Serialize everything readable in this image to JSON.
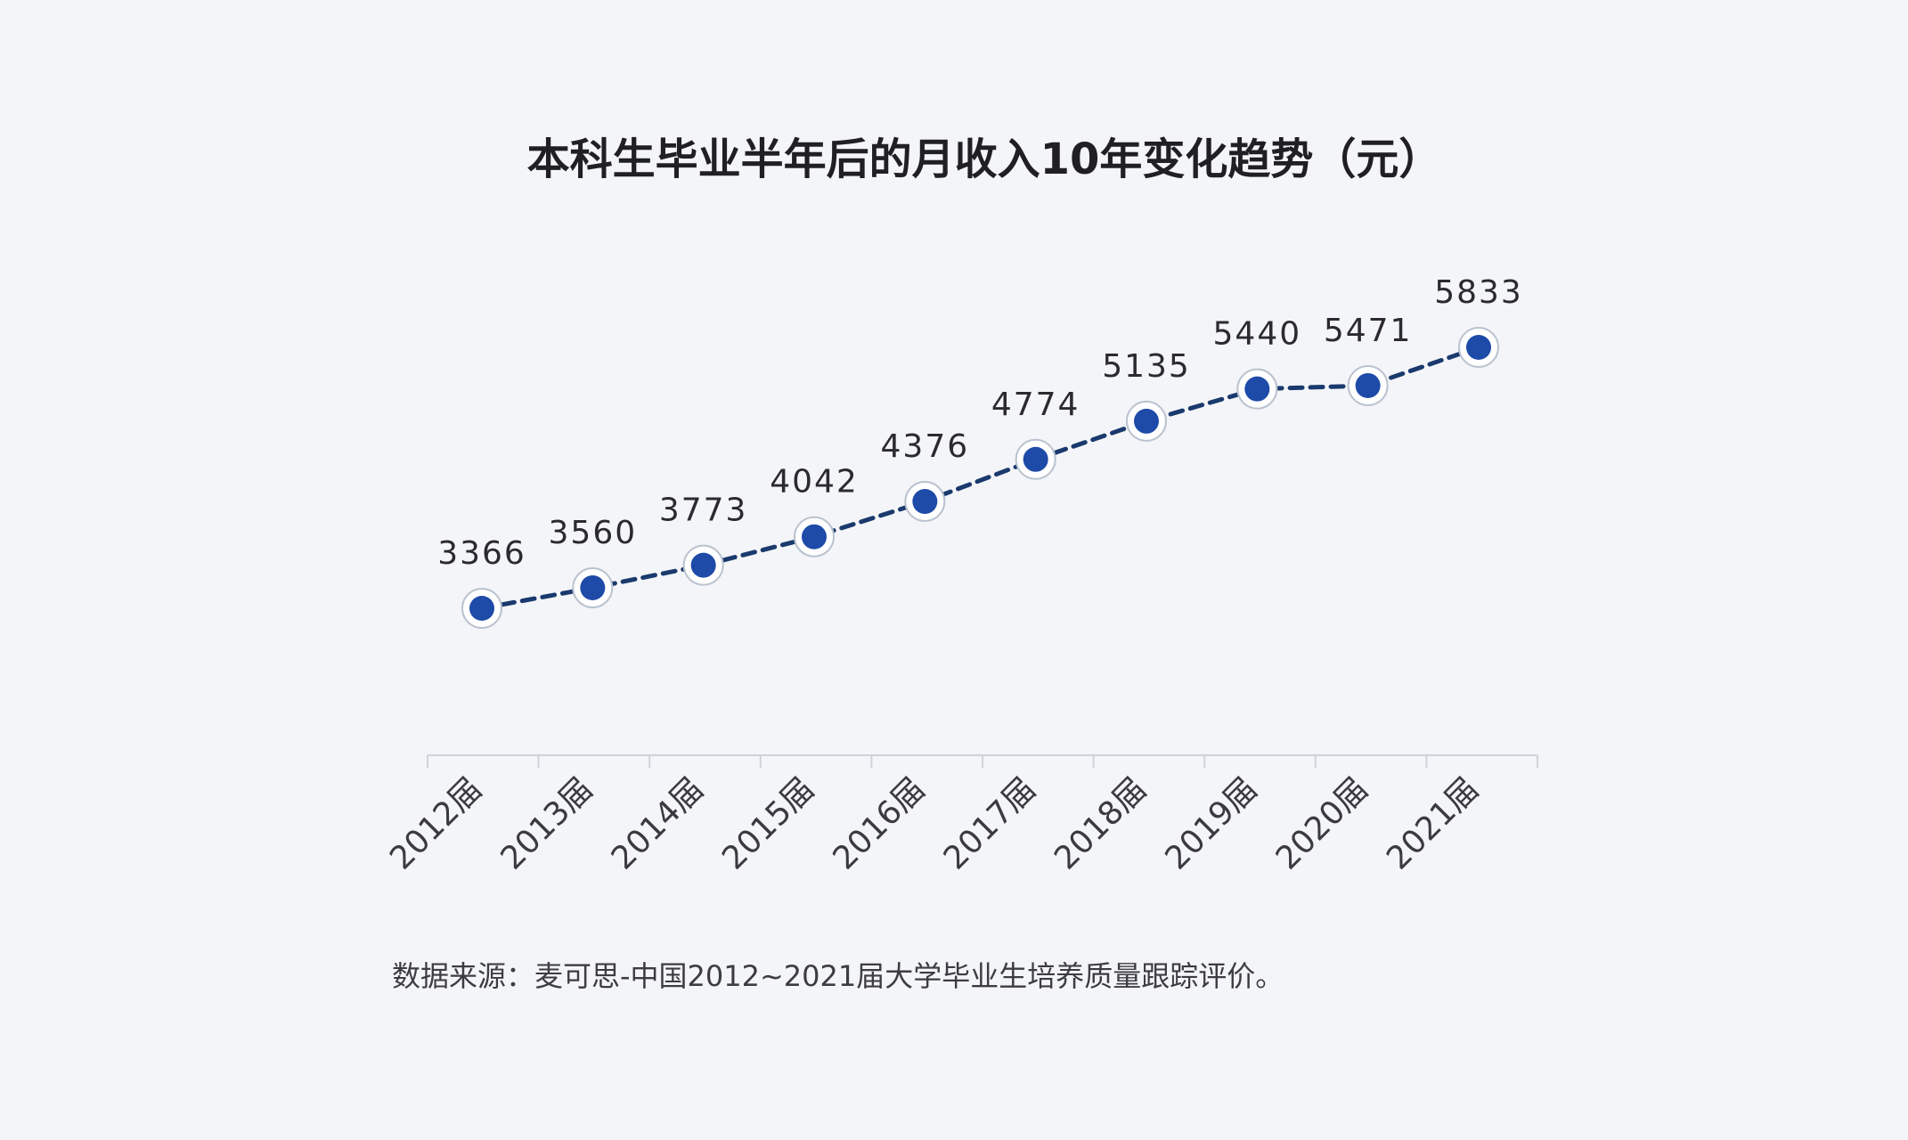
{
  "chart_data": {
    "type": "line",
    "title": "本科生毕业半年后的月收入10年变化趋势（元）",
    "categories": [
      "2012届",
      "2013届",
      "2014届",
      "2015届",
      "2016届",
      "2017届",
      "2018届",
      "2019届",
      "2020届",
      "2021届"
    ],
    "series": [
      {
        "values": [
          3366,
          3560,
          3773,
          4042,
          4376,
          4774,
          5135,
          5440,
          5471,
          5833
        ]
      }
    ],
    "source": "数据来源：麦可思-中国2012~2021届大学毕业生培养质量跟踪评价。",
    "grid": false,
    "legend": "none",
    "colors": {
      "line": "#1a3a6e",
      "marker_fill": "#1e4aa8",
      "marker_ring": "#ffffff",
      "marker_outline": "#b9c3cf",
      "axis": "#cfd3d9",
      "background": "#f4f5f8"
    }
  }
}
